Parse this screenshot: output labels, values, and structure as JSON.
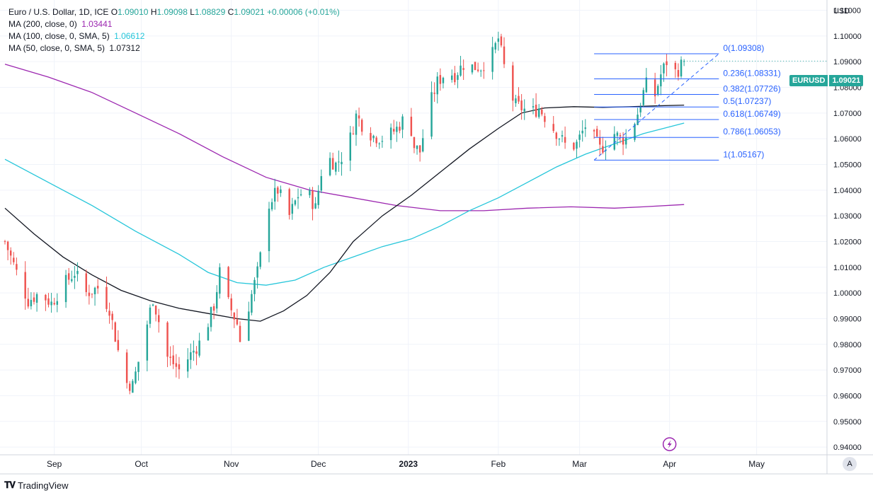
{
  "legend": {
    "title": "Euro / U.S. Dollar, 1D, ICE",
    "open_label": "O",
    "open": "1.09010",
    "high_label": "H",
    "high": "1.09098",
    "low_label": "L",
    "low": "1.08829",
    "close_label": "C",
    "close": "1.09021",
    "change": "+0.00006 (+0.01%)",
    "ma200_label": "MA (200, close, 0)",
    "ma200_value": "1.03441",
    "ma100_label": "MA (100, close, 0, SMA, 5)",
    "ma100_value": "1.06612",
    "ma50_label": "MA (50, close, 0, SMA, 5)",
    "ma50_value": "1.07312"
  },
  "axis": {
    "currency": "USD",
    "auto_button": "A"
  },
  "price_badge": {
    "symbol": "EURUSD",
    "price": "1.09021"
  },
  "branding": {
    "name": "TradingView"
  },
  "colors": {
    "up": "#26a69a",
    "down": "#ef5350",
    "ma200": "#9c27b0",
    "ma100": "#26c6da",
    "ma50": "#131722",
    "fib": "#2962ff",
    "grid": "#f0f3fa",
    "event": "#9c27b0"
  },
  "chart_data": {
    "type": "candlestick",
    "title": "Euro / U.S. Dollar, 1D, ICE",
    "ylabel": "USD",
    "ylim": [
      0.937,
      1.114
    ],
    "y_ticks": [
      "1.11000",
      "1.10000",
      "1.09000",
      "1.08000",
      "1.07000",
      "1.06000",
      "1.05000",
      "1.04000",
      "1.03000",
      "1.02000",
      "1.01000",
      "1.00000",
      "0.99000",
      "0.98000",
      "0.97000",
      "0.96000",
      "0.95000",
      "0.94000"
    ],
    "x_ticks": [
      {
        "label": "Sep",
        "day": 17
      },
      {
        "label": "Oct",
        "day": 47
      },
      {
        "label": "Nov",
        "day": 78
      },
      {
        "label": "Dec",
        "day": 108
      },
      {
        "label": "2023",
        "day": 139
      },
      {
        "label": "Feb",
        "day": 170
      },
      {
        "label": "Mar",
        "day": 198
      },
      {
        "label": "Apr",
        "day": 229
      },
      {
        "label": "May",
        "day": 259
      }
    ],
    "x_range_days": [
      0,
      283
    ],
    "close_anchors": [
      [
        0,
        1.02
      ],
      [
        4,
        1.008
      ],
      [
        8,
        0.997
      ],
      [
        12,
        1.0
      ],
      [
        16,
        0.996
      ],
      [
        20,
        1.003
      ],
      [
        24,
        1.008
      ],
      [
        28,
        1.0
      ],
      [
        32,
        1.002
      ],
      [
        36,
        0.994
      ],
      [
        40,
        0.972
      ],
      [
        42,
        0.965
      ],
      [
        44,
        0.964
      ],
      [
        47,
        0.978
      ],
      [
        51,
        0.998
      ],
      [
        53,
        0.989
      ],
      [
        56,
        0.975
      ],
      [
        60,
        0.97
      ],
      [
        64,
        0.976
      ],
      [
        68,
        0.982
      ],
      [
        72,
        0.995
      ],
      [
        74,
        1.008
      ],
      [
        77,
        0.996
      ],
      [
        80,
        0.988
      ],
      [
        82,
        0.975
      ],
      [
        84,
        0.995
      ],
      [
        87,
        1.008
      ],
      [
        89,
        1.02
      ],
      [
        91,
        1.035
      ],
      [
        94,
        1.04
      ],
      [
        98,
        1.03
      ],
      [
        101,
        1.038
      ],
      [
        104,
        1.04
      ],
      [
        107,
        1.033
      ],
      [
        110,
        1.054
      ],
      [
        114,
        1.05
      ],
      [
        118,
        1.056
      ],
      [
        121,
        1.069
      ],
      [
        124,
        1.064
      ],
      [
        127,
        1.061
      ],
      [
        131,
        1.06
      ],
      [
        135,
        1.064
      ],
      [
        139,
        1.07
      ],
      [
        141,
        1.057
      ],
      [
        143,
        1.055
      ],
      [
        146,
        1.072
      ],
      [
        149,
        1.082
      ],
      [
        152,
        1.086
      ],
      [
        155,
        1.085
      ],
      [
        158,
        1.089
      ],
      [
        161,
        1.088
      ],
      [
        164,
        1.088
      ],
      [
        168,
        1.093
      ],
      [
        170,
        1.099
      ],
      [
        172,
        1.088
      ],
      [
        174,
        1.078
      ],
      [
        176,
        1.073
      ],
      [
        178,
        1.072
      ],
      [
        181,
        1.07
      ],
      [
        184,
        1.072
      ],
      [
        187,
        1.067
      ],
      [
        191,
        1.061
      ],
      [
        194,
        1.056
      ],
      [
        197,
        1.058
      ],
      [
        200,
        1.065
      ],
      [
        203,
        1.06
      ],
      [
        205,
        1.056
      ],
      [
        207,
        1.058
      ],
      [
        210,
        1.062
      ],
      [
        212,
        1.06
      ],
      [
        214,
        1.06
      ],
      [
        216,
        1.064
      ],
      [
        218,
        1.07
      ],
      [
        220,
        1.078
      ],
      [
        222,
        1.084
      ],
      [
        224,
        1.077
      ],
      [
        226,
        1.085
      ],
      [
        228,
        1.09
      ],
      [
        230,
        1.085
      ],
      [
        232,
        1.087
      ],
      [
        234,
        1.0902
      ]
    ],
    "last_candle": {
      "open": 1.0901,
      "high": 1.09098,
      "low": 1.08829,
      "close": 1.09021
    },
    "moving_averages": [
      {
        "name": "MA (200, close, 0)",
        "value": 1.03441,
        "points": [
          [
            0,
            1.089
          ],
          [
            15,
            1.084
          ],
          [
            30,
            1.078
          ],
          [
            45,
            1.07
          ],
          [
            60,
            1.062
          ],
          [
            75,
            1.053
          ],
          [
            90,
            1.045
          ],
          [
            105,
            1.04
          ],
          [
            120,
            1.037
          ],
          [
            135,
            1.034
          ],
          [
            150,
            1.032
          ],
          [
            165,
            1.032
          ],
          [
            180,
            1.033
          ],
          [
            195,
            1.0335
          ],
          [
            210,
            1.033
          ],
          [
            220,
            1.0335
          ],
          [
            234,
            1.0344
          ]
        ]
      },
      {
        "name": "MA (100, close, 0, SMA, 5)",
        "value": 1.06612,
        "points": [
          [
            0,
            1.052
          ],
          [
            15,
            1.043
          ],
          [
            30,
            1.034
          ],
          [
            45,
            1.024
          ],
          [
            60,
            1.015
          ],
          [
            70,
            1.008
          ],
          [
            80,
            1.004
          ],
          [
            90,
            1.003
          ],
          [
            100,
            1.005
          ],
          [
            110,
            1.01
          ],
          [
            120,
            1.014
          ],
          [
            130,
            1.018
          ],
          [
            140,
            1.021
          ],
          [
            150,
            1.026
          ],
          [
            160,
            1.032
          ],
          [
            170,
            1.037
          ],
          [
            180,
            1.043
          ],
          [
            190,
            1.049
          ],
          [
            200,
            1.054
          ],
          [
            210,
            1.058
          ],
          [
            220,
            1.062
          ],
          [
            234,
            1.0661
          ]
        ]
      },
      {
        "name": "MA (50, close, 0, SMA, 5)",
        "value": 1.07312,
        "points": [
          [
            0,
            1.033
          ],
          [
            10,
            1.023
          ],
          [
            20,
            1.014
          ],
          [
            30,
            1.007
          ],
          [
            40,
            1.001
          ],
          [
            50,
            0.997
          ],
          [
            60,
            0.994
          ],
          [
            70,
            0.992
          ],
          [
            80,
            0.99
          ],
          [
            88,
            0.989
          ],
          [
            96,
            0.993
          ],
          [
            104,
            0.999
          ],
          [
            112,
            1.008
          ],
          [
            120,
            1.02
          ],
          [
            130,
            1.03
          ],
          [
            140,
            1.038
          ],
          [
            150,
            1.047
          ],
          [
            160,
            1.056
          ],
          [
            170,
            1.064
          ],
          [
            178,
            1.07
          ],
          [
            186,
            1.072
          ],
          [
            196,
            1.0725
          ],
          [
            206,
            1.0722
          ],
          [
            216,
            1.0725
          ],
          [
            224,
            1.0728
          ],
          [
            234,
            1.0731
          ]
        ]
      }
    ],
    "fibonacci": {
      "levels": [
        {
          "label": "0(1.09308)",
          "value": 1.09308
        },
        {
          "label": "0.236(1.08331)",
          "value": 1.08331
        },
        {
          "label": "0.382(1.07726)",
          "value": 1.07726
        },
        {
          "label": "0.5(1.07237)",
          "value": 1.07237
        },
        {
          "label": "0.618(1.06749)",
          "value": 1.06749
        },
        {
          "label": "0.786(1.06053)",
          "value": 1.06053
        },
        {
          "label": "1(1.05167)",
          "value": 1.05167
        }
      ],
      "start_day": 203,
      "end_day": 246,
      "trend_from": [
        203,
        1.05167
      ],
      "trend_to": [
        246,
        1.09308
      ]
    },
    "event_marker_day": 229
  }
}
